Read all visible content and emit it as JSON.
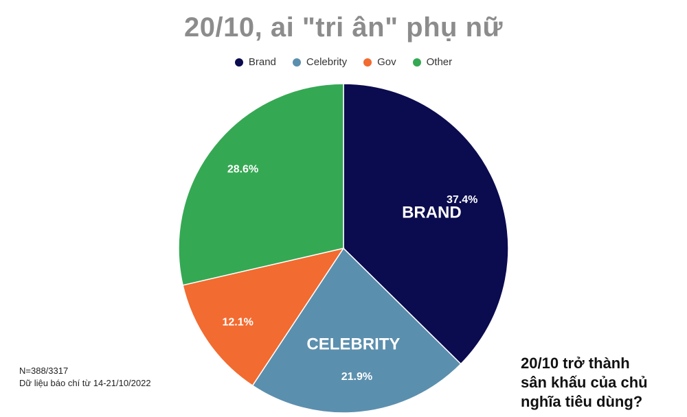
{
  "chart_data": {
    "type": "pie",
    "title": "20/10, ai \"tri ân\" phụ nữ",
    "legend_position": "top",
    "slices": [
      {
        "name": "Brand",
        "value": 37.4,
        "label": "37.4%",
        "color": "#0b0b4f",
        "callout": "BRAND"
      },
      {
        "name": "Celebrity",
        "value": 21.9,
        "label": "21.9%",
        "color": "#5b8fae",
        "callout": "CELEBRITY"
      },
      {
        "name": "Gov",
        "value": 12.1,
        "label": "12.1%",
        "color": "#f26b30",
        "callout": ""
      },
      {
        "name": "Other",
        "value": 28.6,
        "label": "28.6%",
        "color": "#35a853",
        "callout": ""
      }
    ]
  },
  "notes": {
    "sample": "N=388/3317",
    "source": "Dữ liệu báo chí từ 14-21/10/2022"
  },
  "question": {
    "line1": "20/10 trở thành",
    "line2": "sân khấu của chủ",
    "line3": "nghĩa tiêu dùng?"
  }
}
